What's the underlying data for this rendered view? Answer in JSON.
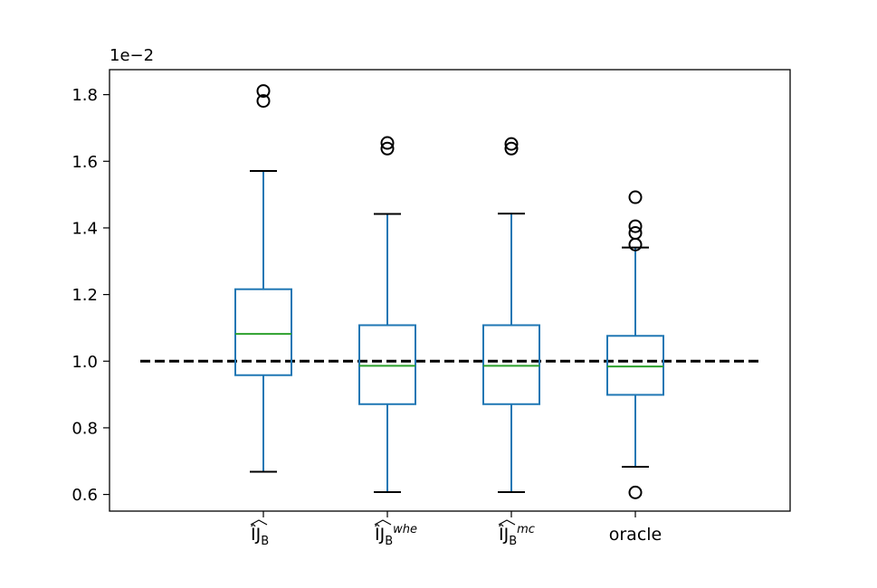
{
  "chart_data": {
    "type": "box",
    "title": "",
    "xlabel": "",
    "ylabel": "",
    "y_offset_label": "1e−2",
    "ylim": [
      0.55,
      1.875
    ],
    "yticks": [
      0.6,
      0.8,
      1.0,
      1.2,
      1.4,
      1.6,
      1.8
    ],
    "ytick_labels": [
      "0.6",
      "0.8",
      "1.0",
      "1.2",
      "1.4",
      "1.6",
      "1.8"
    ],
    "grid": false,
    "reference_line": {
      "y": 1.0,
      "style": "dashed",
      "color": "#000000"
    },
    "colors": {
      "box": "#1f77b4",
      "median": "#2ca02c",
      "whisker_cap": "#000000",
      "flier": "#000000"
    },
    "categories": [
      {
        "base": "ÎJ",
        "hat": true,
        "sub": "B",
        "sup": ""
      },
      {
        "base": "ÎJ",
        "hat": true,
        "sub": "B",
        "sup": "whe"
      },
      {
        "base": "ÎJ",
        "hat": true,
        "sub": "B",
        "sup": "mc"
      },
      {
        "base": "oracle",
        "hat": false,
        "sub": "",
        "sup": ""
      }
    ],
    "boxes": [
      {
        "whislo": 0.668,
        "q1": 0.958,
        "med": 1.082,
        "q3": 1.216,
        "whishi": 1.571,
        "fliers": [
          1.781,
          1.811
        ]
      },
      {
        "whislo": 0.607,
        "q1": 0.871,
        "med": 0.986,
        "q3": 1.108,
        "whishi": 1.442,
        "fliers": [
          1.638,
          1.655
        ]
      },
      {
        "whislo": 0.607,
        "q1": 0.871,
        "med": 0.986,
        "q3": 1.108,
        "whishi": 1.443,
        "fliers": [
          1.638,
          1.652
        ]
      },
      {
        "whislo": 0.683,
        "q1": 0.899,
        "med": 0.984,
        "q3": 1.076,
        "whishi": 1.341,
        "fliers": [
          0.606,
          1.35,
          1.385,
          1.405,
          1.492
        ]
      }
    ]
  }
}
